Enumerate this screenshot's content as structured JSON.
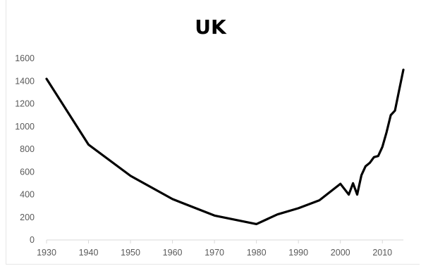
{
  "chart_data": {
    "type": "line",
    "title": "UK",
    "xlabel": "",
    "ylabel": "",
    "xlim": [
      1930,
      2015
    ],
    "ylim": [
      0,
      1600
    ],
    "x_ticks": [
      1930,
      1940,
      1950,
      1960,
      1970,
      1980,
      1990,
      2000,
      2010
    ],
    "y_ticks": [
      0,
      200,
      400,
      600,
      800,
      1000,
      1200,
      1400,
      1600
    ],
    "grid": false,
    "legend": "none",
    "colors": {
      "line": "#000000",
      "axis": "#d9d9d9",
      "tick_text": "#595959"
    },
    "series": [
      {
        "x": [
          1930,
          1940,
          1950,
          1960,
          1970,
          1980,
          1985,
          1990,
          1995,
          2000,
          2002,
          2003,
          2004,
          2005,
          2006,
          2007,
          2008,
          2009,
          2010,
          2011,
          2012,
          2013,
          2014,
          2015
        ],
        "y": [
          1420,
          840,
          565,
          360,
          215,
          140,
          225,
          280,
          350,
          495,
          400,
          500,
          400,
          570,
          650,
          680,
          730,
          740,
          820,
          950,
          1100,
          1140,
          1320,
          1500
        ]
      }
    ]
  }
}
